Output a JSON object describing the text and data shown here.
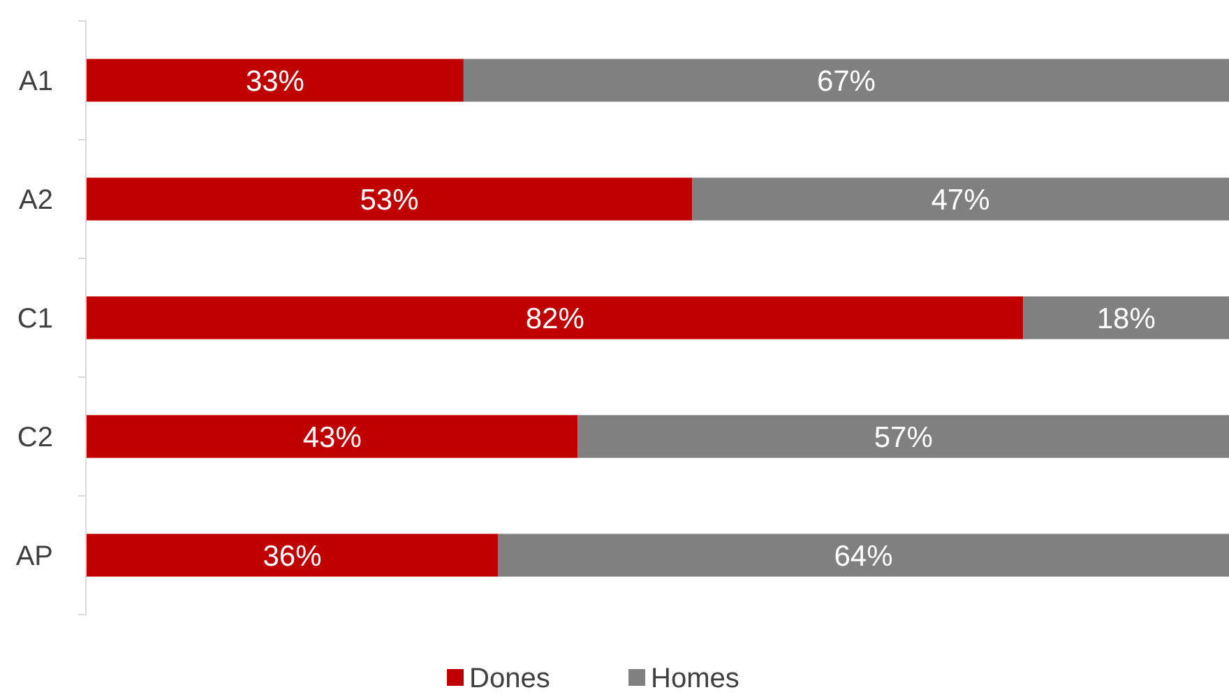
{
  "chart_data": {
    "type": "bar",
    "orientation": "horizontal",
    "stacked": true,
    "categories": [
      "A1",
      "A2",
      "C1",
      "C2",
      "AP"
    ],
    "series": [
      {
        "name": "Dones",
        "color": "#c00000",
        "values": [
          33,
          53,
          82,
          43,
          36
        ],
        "value_labels": [
          "33%",
          "53%",
          "82%",
          "43%",
          "36%"
        ]
      },
      {
        "name": "Homes",
        "color": "#808080",
        "values": [
          67,
          47,
          18,
          57,
          64
        ],
        "value_labels": [
          "67%",
          "47%",
          "18%",
          "57%",
          "64%"
        ]
      }
    ],
    "xlim": [
      0,
      100
    ],
    "tick_labels": "y",
    "legend": "bottom",
    "grid": false
  }
}
